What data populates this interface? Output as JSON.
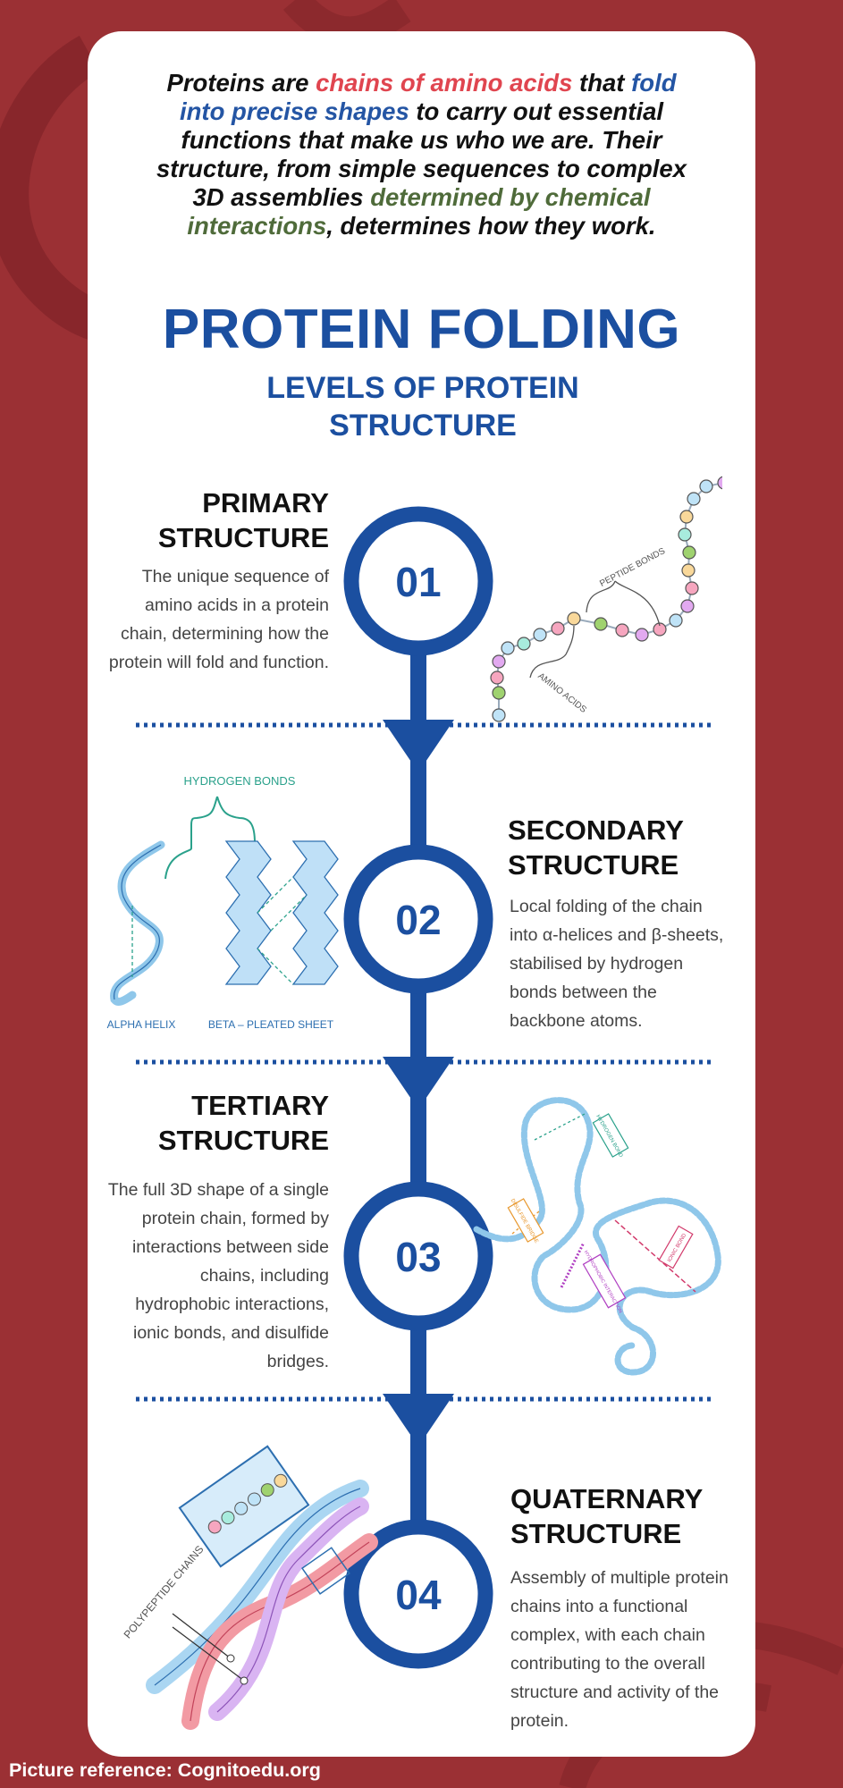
{
  "intro": {
    "p1": "Proteins are ",
    "h1": "chains of amino acids",
    "p2": " that ",
    "h2": "fold into precise shapes",
    "p3": " to carry out essential functions that make us who we are. Their structure, from simple sequences to complex 3D assemblies ",
    "h3": "determined by chemical interactions",
    "p4": ", determines how they work."
  },
  "title": "PROTEIN FOLDING",
  "subtitle": "LEVELS OF PROTEIN STRUCTURE",
  "steps": [
    {
      "number": "01",
      "title_line1": "PRIMARY",
      "title_line2": "STRUCTURE",
      "description": "The unique sequence of amino acids in a protein chain, determining how the protein will fold and function."
    },
    {
      "number": "02",
      "title_line1": "SECONDARY",
      "title_line2": "STRUCTURE",
      "description": "Local folding of the chain into α-helices and β-sheets, stabilised by hydrogen bonds between the backbone atoms."
    },
    {
      "number": "03",
      "title_line1": "TERTIARY",
      "title_line2": "STRUCTURE",
      "description": "The full 3D shape of a single protein chain, formed by interactions between side chains, including hydrophobic interactions, ionic bonds, and disulfide bridges."
    },
    {
      "number": "04",
      "title_line1": "QUATERNARY",
      "title_line2": "STRUCTURE",
      "description": "Assembly of multiple protein chains into a functional complex, with each chain contributing to the overall structure and activity of the protein."
    }
  ],
  "labels": {
    "peptide_bonds": "PEPTIDE BONDS",
    "amino_acids": "AMINO ACIDS",
    "hydrogen_bonds": "HYDROGEN BONDS",
    "alpha_helix": "ALPHA HELIX",
    "beta_sheet": "BETA – PLEATED SHEET",
    "hydrogen_bond": "HYDROGEN BOND",
    "disulfide_bridge": "DISULFIDE BRIDGE",
    "ionic_bond": "IONIC BOND",
    "hydrophobic_interaction": "HYDROPHOBIC INTERACTION",
    "polypeptide_chains": "POLYPEPTIDE CHAINS"
  },
  "footer": "Picture reference: Cognitoedu.org",
  "colors": {
    "background": "#9b3034",
    "primary_blue": "#1b4fa0",
    "highlight_red": "#e0454f",
    "highlight_blue": "#2455a4",
    "highlight_green": "#4f6b3a"
  }
}
